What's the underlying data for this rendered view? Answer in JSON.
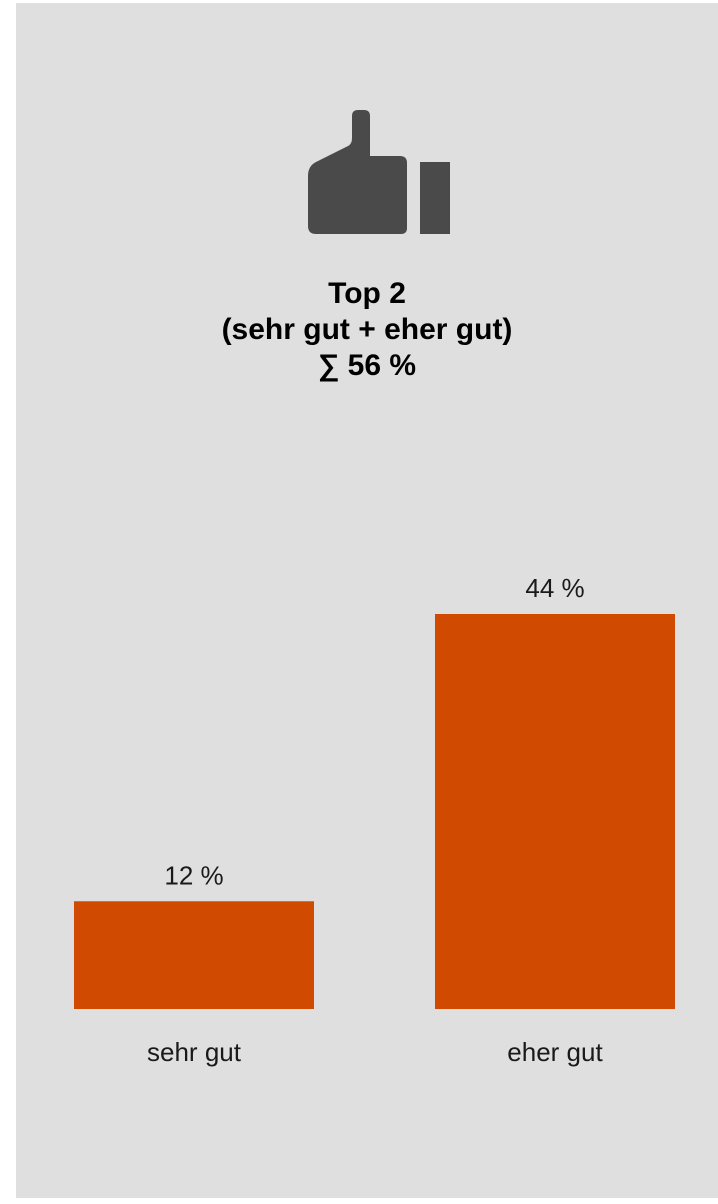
{
  "header": {
    "icon": "thumbs-up-icon",
    "title": "Top 2",
    "subtitle": "(sehr gut + eher gut)",
    "sum_label": "∑ 56 %"
  },
  "colors": {
    "bar": "#d04a02",
    "icon": "#4a4a4a",
    "panel": "#dfdfdf"
  },
  "chart_data": {
    "type": "bar",
    "categories": [
      "sehr gut",
      "eher gut"
    ],
    "values": [
      12,
      44
    ],
    "data_labels": [
      "12 %",
      "44 %"
    ],
    "title": "",
    "xlabel": "",
    "ylabel": "",
    "ylim": [
      0,
      44
    ],
    "grid": false,
    "legend": "none"
  }
}
